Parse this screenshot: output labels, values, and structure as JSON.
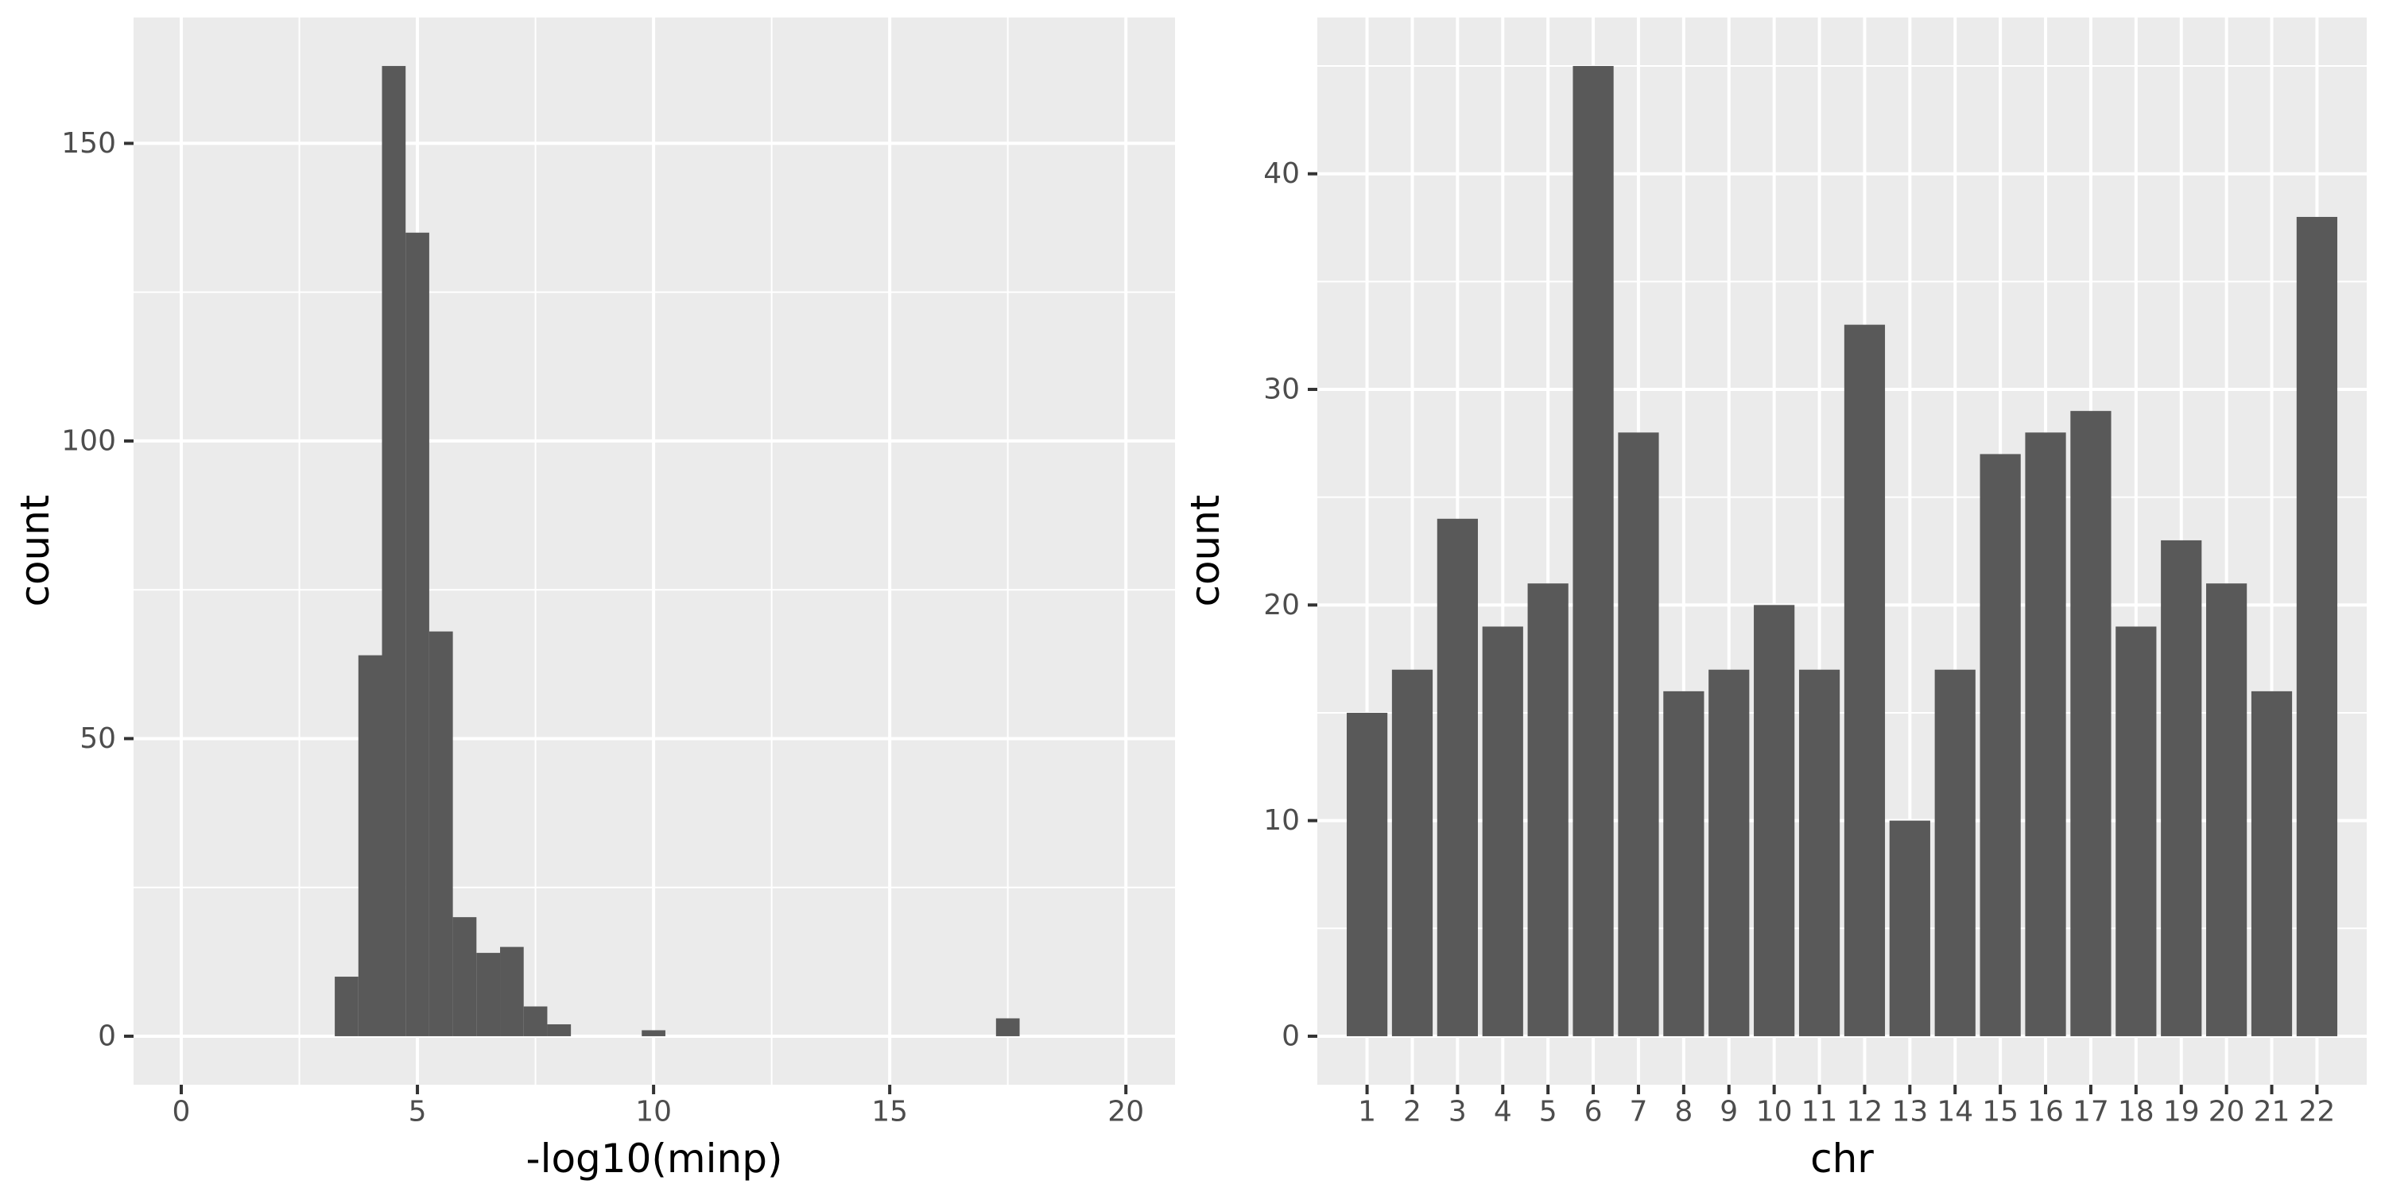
{
  "figure": {
    "background": "#FFFFFF",
    "description": "Two ggplot-style charts side by side: a histogram of -log10(minp) and a bar chart of counts per chromosome"
  },
  "theme": {
    "panel_bg": "#EBEBEB",
    "grid_color": "#FFFFFF",
    "bar_fill": "#595959",
    "tick_label_color": "#4D4D4D",
    "axis_title_color": "#000000",
    "tick_mark_color": "#333333"
  },
  "chart_data": [
    {
      "type": "histogram",
      "title": "",
      "xlabel": "-log10(minp)",
      "ylabel": "count",
      "x_ticks": [
        "0",
        "5",
        "10",
        "15",
        "20"
      ],
      "x_tick_values": [
        0,
        5,
        10,
        15,
        20
      ],
      "x_minor_values": [
        2.5,
        7.5,
        12.5,
        17.5
      ],
      "y_ticks": [
        "0",
        "50",
        "100",
        "150"
      ],
      "y_tick_values": [
        0,
        50,
        100,
        150
      ],
      "y_minor_values": [
        25,
        75,
        125
      ],
      "xlim": [
        -1.01,
        21.04
      ],
      "ylim": [
        -8.15,
        171.15
      ],
      "grid": true,
      "legend": "none",
      "bin_width": 0.5,
      "bins": [
        {
          "x0": 3.25,
          "count": 10
        },
        {
          "x0": 3.75,
          "count": 64
        },
        {
          "x0": 4.25,
          "count": 163
        },
        {
          "x0": 4.75,
          "count": 135
        },
        {
          "x0": 5.25,
          "count": 68
        },
        {
          "x0": 5.75,
          "count": 20
        },
        {
          "x0": 6.25,
          "count": 14
        },
        {
          "x0": 6.75,
          "count": 15
        },
        {
          "x0": 7.25,
          "count": 5
        },
        {
          "x0": 7.75,
          "count": 2
        },
        {
          "x0": 9.75,
          "count": 1
        },
        {
          "x0": 17.25,
          "count": 3
        }
      ]
    },
    {
      "type": "bar",
      "title": "",
      "xlabel": "chr",
      "ylabel": "count",
      "categories": [
        "1",
        "2",
        "3",
        "4",
        "5",
        "6",
        "7",
        "8",
        "9",
        "10",
        "11",
        "12",
        "13",
        "14",
        "15",
        "16",
        "17",
        "18",
        "19",
        "20",
        "21",
        "22"
      ],
      "values": [
        15,
        17,
        24,
        19,
        21,
        45,
        28,
        16,
        17,
        20,
        17,
        33,
        10,
        17,
        27,
        28,
        29,
        19,
        23,
        21,
        16,
        38
      ],
      "y_ticks": [
        "0",
        "10",
        "20",
        "30",
        "40"
      ],
      "y_tick_values": [
        0,
        10,
        20,
        30,
        40
      ],
      "y_minor_values": [
        5,
        15,
        25,
        35,
        45
      ],
      "ylim": [
        -2.25,
        47.25
      ],
      "grid": true,
      "legend": "none",
      "x_expand": 0.6,
      "bar_rel_width": 0.9
    }
  ]
}
